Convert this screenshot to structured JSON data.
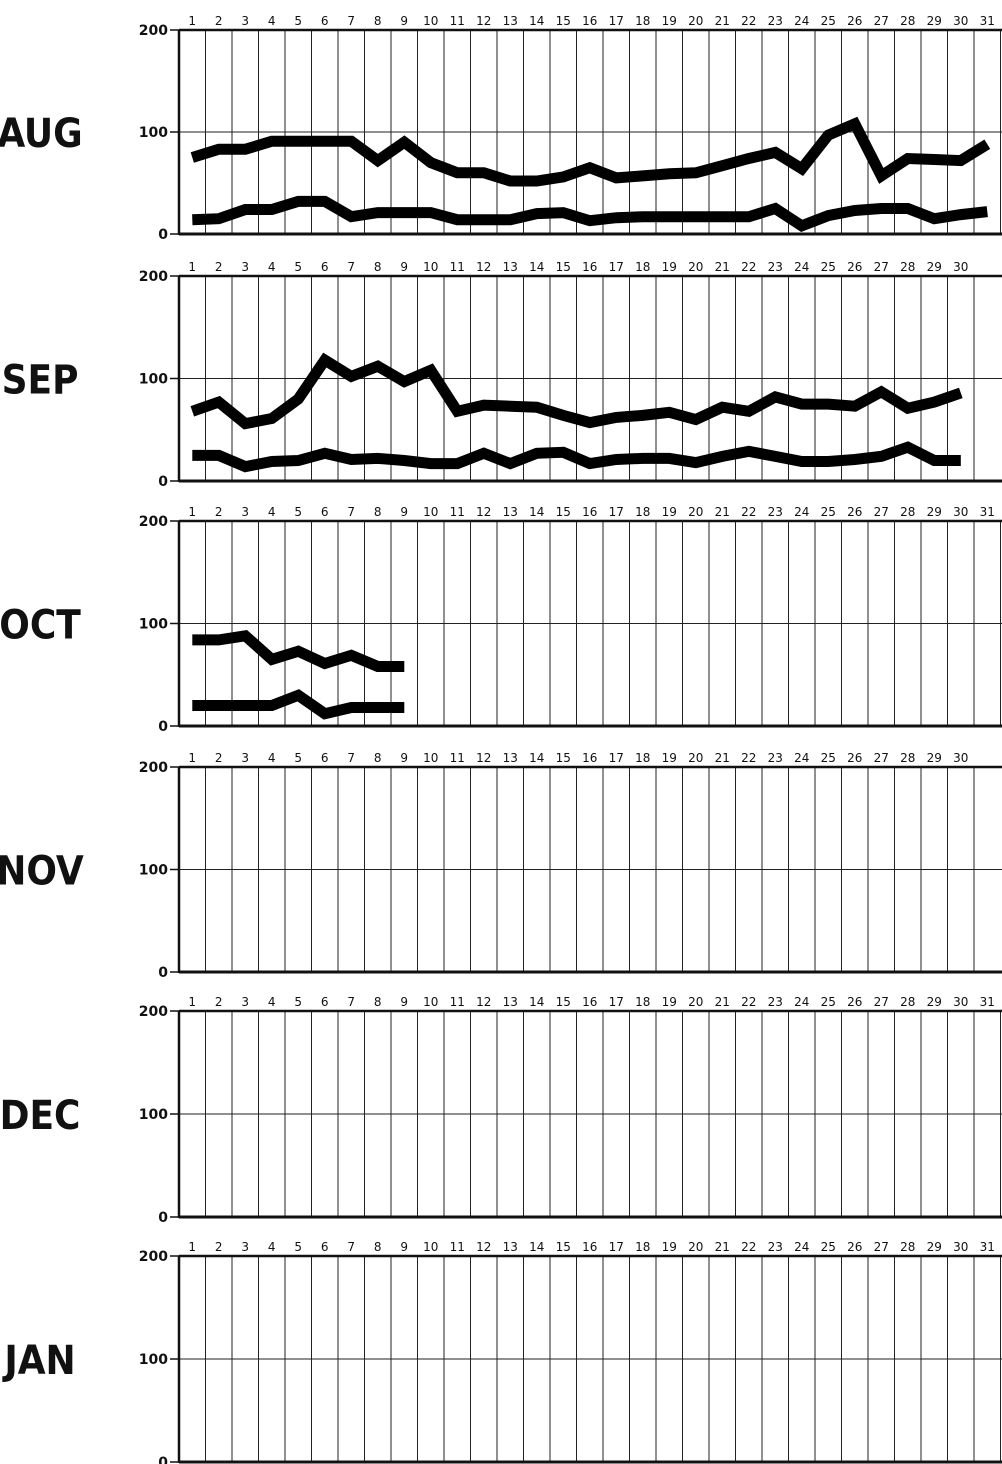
{
  "chart_data": [
    {
      "type": "line",
      "month_label": "AUG",
      "days": 31,
      "y_ticks": [
        "200",
        "100",
        "0"
      ],
      "ylim": [
        0,
        200
      ],
      "series": [
        {
          "values": [
            75,
            83,
            83,
            91,
            91,
            91,
            91,
            72,
            90,
            70,
            60,
            60,
            52,
            52,
            56,
            65,
            55,
            57,
            59,
            60,
            67,
            74,
            80,
            64,
            97,
            108,
            57,
            74,
            73,
            72,
            88
          ]
        },
        {
          "values": [
            14,
            15,
            24,
            24,
            32,
            32,
            17,
            21,
            21,
            21,
            14,
            14,
            14,
            20,
            21,
            13,
            16,
            17,
            17,
            17,
            17,
            17,
            25,
            8,
            18,
            23,
            25,
            25,
            15,
            19,
            22
          ]
        }
      ]
    },
    {
      "type": "line",
      "month_label": "SEP",
      "days": 30,
      "y_ticks": [
        "200",
        "100",
        "0"
      ],
      "ylim": [
        0,
        200
      ],
      "series": [
        {
          "values": [
            68,
            77,
            56,
            61,
            80,
            118,
            102,
            112,
            97,
            108,
            68,
            74,
            73,
            72,
            64,
            57,
            62,
            64,
            67,
            60,
            72,
            68,
            82,
            75,
            75,
            73,
            87,
            71,
            77,
            86
          ]
        },
        {
          "values": [
            25,
            25,
            14,
            19,
            20,
            27,
            21,
            22,
            20,
            17,
            17,
            27,
            17,
            27,
            28,
            17,
            21,
            22,
            22,
            18,
            24,
            29,
            24,
            19,
            19,
            21,
            24,
            33,
            20,
            20
          ]
        }
      ]
    },
    {
      "type": "line",
      "month_label": "OCT",
      "days": 31,
      "y_ticks": [
        "200",
        "100",
        "0"
      ],
      "ylim": [
        0,
        200
      ],
      "series": [
        {
          "values": [
            84,
            84,
            88,
            65,
            73,
            61,
            69,
            58,
            58
          ]
        },
        {
          "values": [
            20,
            20,
            20,
            20,
            30,
            12,
            18,
            18,
            18
          ]
        }
      ]
    },
    {
      "type": "line",
      "month_label": "NOV",
      "days": 30,
      "y_ticks": [
        "200",
        "100",
        "0"
      ],
      "ylim": [
        0,
        200
      ],
      "series": []
    },
    {
      "type": "line",
      "month_label": "DEC",
      "days": 31,
      "y_ticks": [
        "200",
        "100",
        "0"
      ],
      "ylim": [
        0,
        200
      ],
      "series": []
    },
    {
      "type": "line",
      "month_label": "JAN",
      "days": 31,
      "y_ticks": [
        "200",
        "100",
        "0"
      ],
      "ylim": [
        0,
        200
      ],
      "series": []
    }
  ]
}
